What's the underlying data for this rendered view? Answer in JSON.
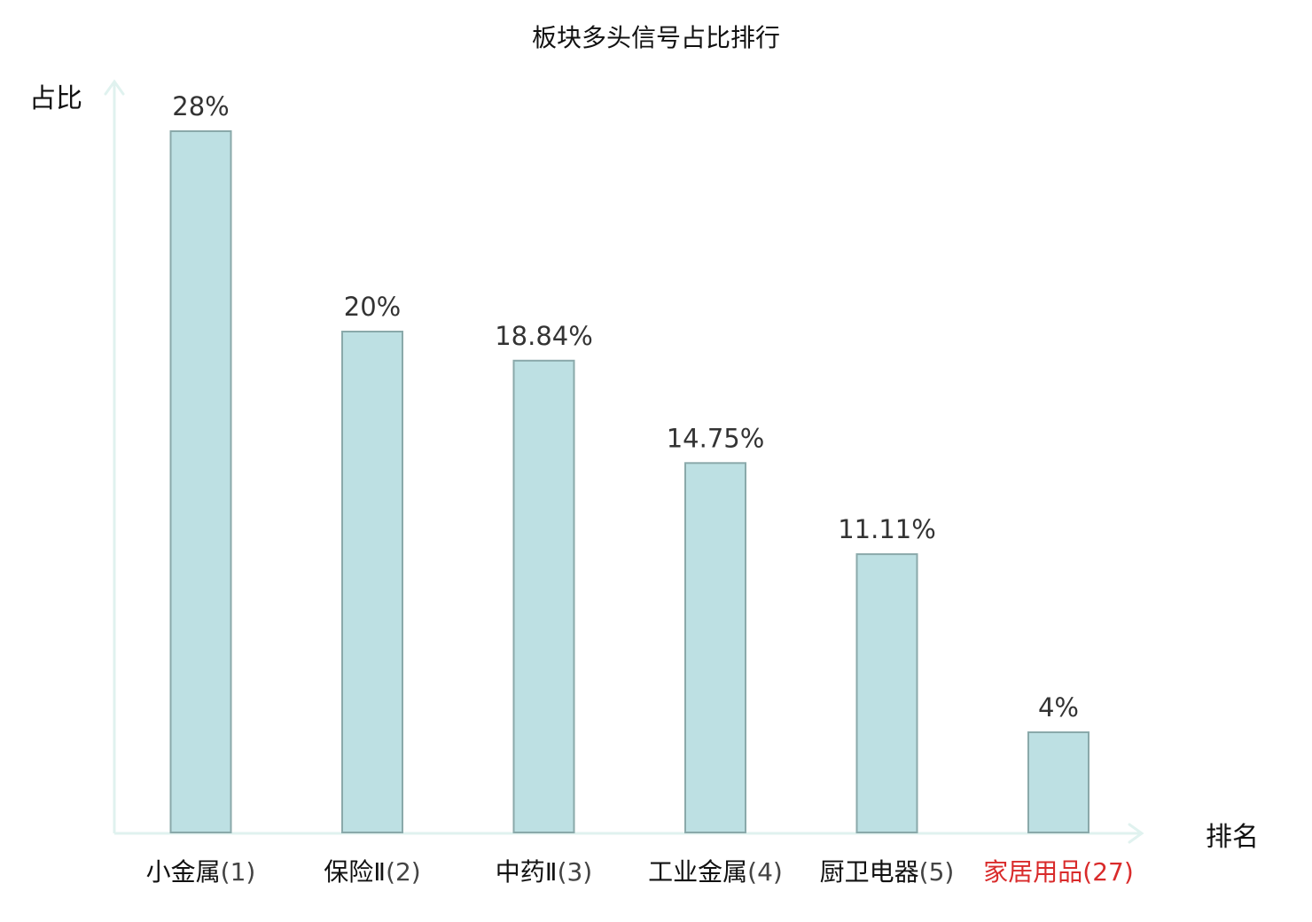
{
  "chart_data": {
    "type": "bar",
    "title": "板块多头信号占比排行",
    "ylabel": "占比",
    "xlabel": "排名",
    "ylim": [
      0,
      30
    ],
    "grid": false,
    "legend": "none",
    "categories": [
      {
        "name": "小金属",
        "rank": "(1)",
        "highlight": false
      },
      {
        "name": "保险Ⅱ",
        "rank": "(2)",
        "highlight": false
      },
      {
        "name": "中药Ⅱ",
        "rank": "(3)",
        "highlight": false
      },
      {
        "name": "工业金属",
        "rank": "(4)",
        "highlight": false
      },
      {
        "name": "厨卫电器",
        "rank": "(5)",
        "highlight": false
      },
      {
        "name": "家居用品",
        "rank": "(27)",
        "highlight": true
      }
    ],
    "values": [
      28,
      20,
      18.84,
      14.75,
      11.11,
      4
    ],
    "value_labels": [
      "28%",
      "20%",
      "18.84%",
      "14.75%",
      "11.11%",
      "4%"
    ],
    "colors": {
      "bar_fill": "#bde0e3",
      "bar_stroke": "#8aa9aa",
      "axis": "#e0f2ef",
      "highlight_text": "#d92b2b",
      "name_text": "#111111",
      "rank_text": "#444444"
    }
  }
}
